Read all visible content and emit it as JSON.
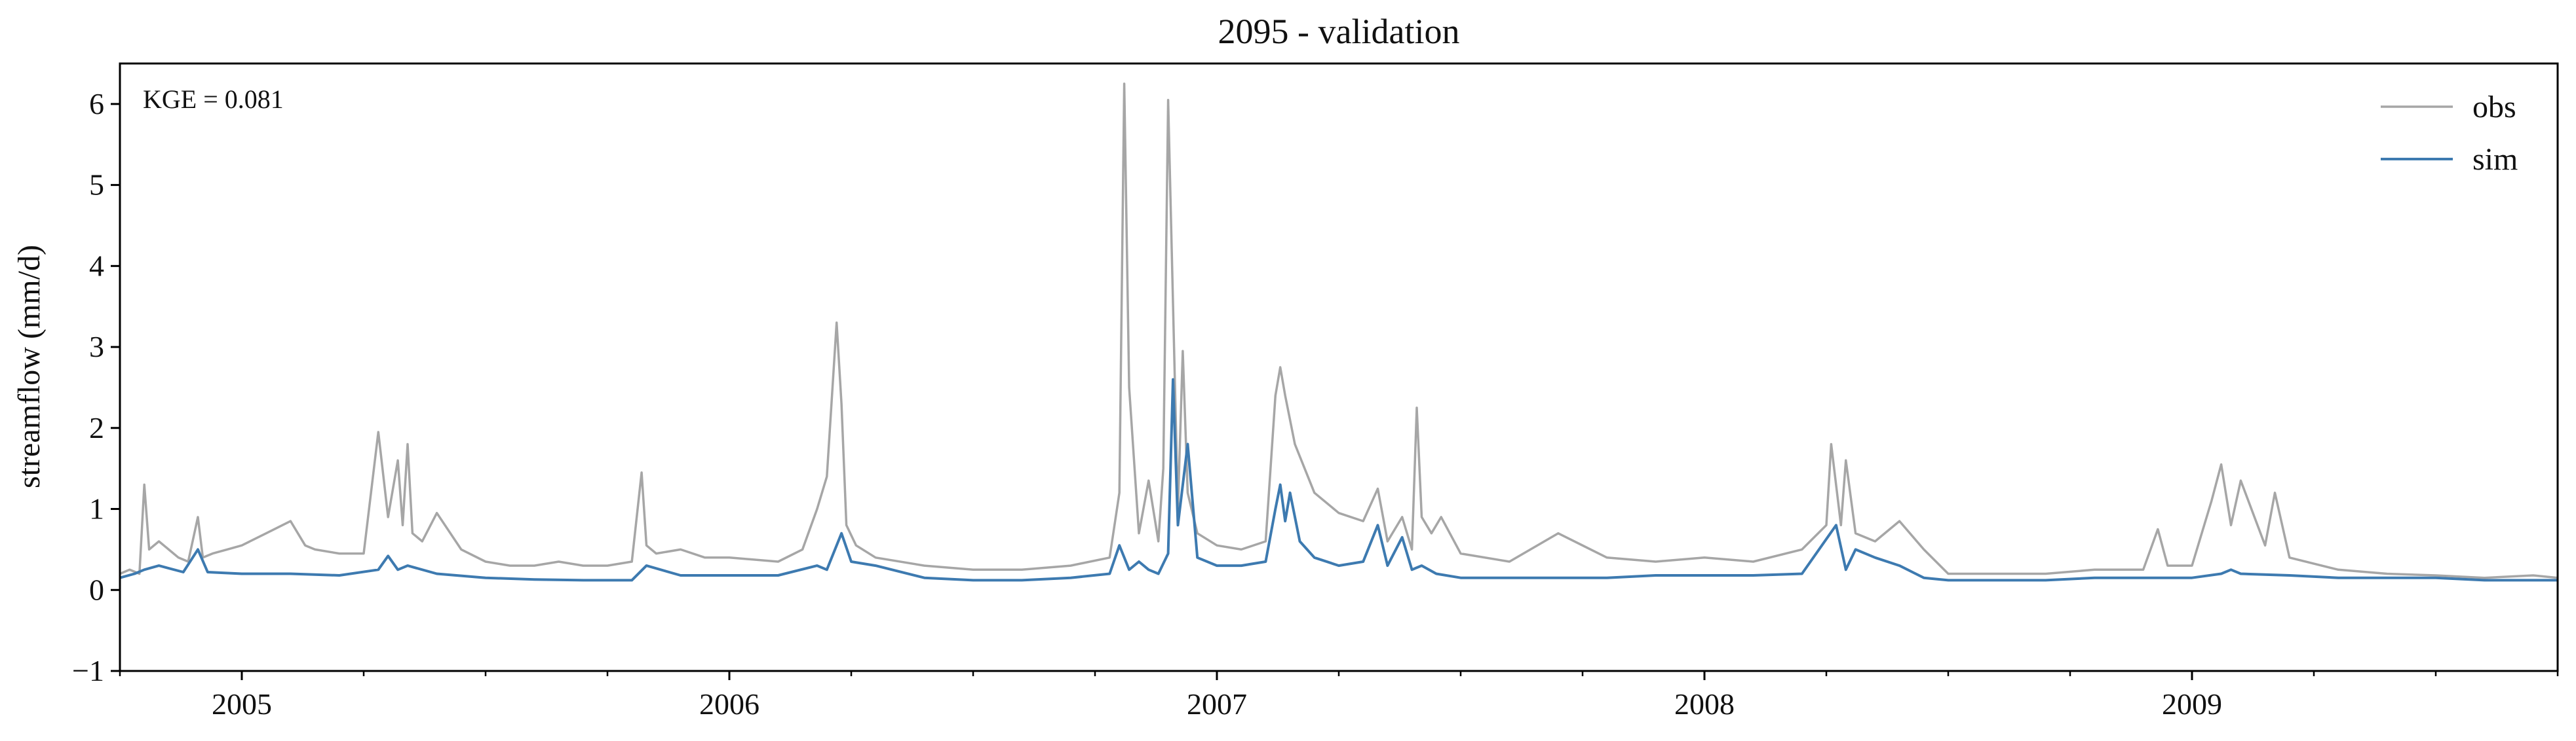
{
  "chart_data": {
    "type": "line",
    "title": "2095 - validation",
    "xlabel": "",
    "ylabel": "streamflow (mm/d)",
    "annotation": "KGE = 0.081",
    "xlim": [
      2004.75,
      2009.75
    ],
    "ylim": [
      -1,
      6.5
    ],
    "yticks": [
      -1,
      0,
      1,
      2,
      3,
      4,
      5,
      6
    ],
    "ytick_labels": [
      "−1",
      "0",
      "1",
      "2",
      "3",
      "4",
      "5",
      "6"
    ],
    "xticks": [
      2005,
      2006,
      2007,
      2008,
      2009
    ],
    "xtick_labels": [
      "2005",
      "2006",
      "2007",
      "2008",
      "2009"
    ],
    "minor_xticks": [
      2004.75,
      2005.25,
      2005.5,
      2005.75,
      2006.25,
      2006.5,
      2006.75,
      2007.25,
      2007.5,
      2007.75,
      2008.25,
      2008.5,
      2008.75,
      2009.25,
      2009.5,
      2009.75
    ],
    "legend_position": "top-right",
    "series": [
      {
        "name": "obs",
        "color": "#a6a6a6",
        "x": [
          2004.75,
          2004.77,
          2004.79,
          2004.8,
          2004.81,
          2004.83,
          2004.85,
          2004.87,
          2004.89,
          2004.91,
          2004.92,
          2004.94,
          2004.97,
          2005.0,
          2005.05,
          2005.1,
          2005.13,
          2005.15,
          2005.2,
          2005.25,
          2005.28,
          2005.3,
          2005.32,
          2005.33,
          2005.34,
          2005.35,
          2005.37,
          2005.4,
          2005.45,
          2005.5,
          2005.55,
          2005.6,
          2005.65,
          2005.7,
          2005.75,
          2005.8,
          2005.82,
          2005.83,
          2005.85,
          2005.9,
          2005.95,
          2006.0,
          2006.1,
          2006.15,
          2006.18,
          2006.2,
          2006.22,
          2006.23,
          2006.24,
          2006.26,
          2006.3,
          2006.4,
          2006.5,
          2006.6,
          2006.7,
          2006.78,
          2006.8,
          2006.81,
          2006.82,
          2006.84,
          2006.86,
          2006.88,
          2006.89,
          2006.9,
          2006.92,
          2006.93,
          2006.94,
          2006.96,
          2007.0,
          2007.05,
          2007.1,
          2007.12,
          2007.13,
          2007.14,
          2007.16,
          2007.18,
          2007.2,
          2007.25,
          2007.3,
          2007.33,
          2007.35,
          2007.38,
          2007.4,
          2007.41,
          2007.42,
          2007.44,
          2007.46,
          2007.5,
          2007.6,
          2007.7,
          2007.8,
          2007.9,
          2008.0,
          2008.1,
          2008.2,
          2008.25,
          2008.26,
          2008.28,
          2008.29,
          2008.31,
          2008.35,
          2008.4,
          2008.45,
          2008.5,
          2008.6,
          2008.7,
          2008.8,
          2008.9,
          2008.93,
          2008.95,
          2009.0,
          2009.04,
          2009.06,
          2009.08,
          2009.1,
          2009.15,
          2009.17,
          2009.2,
          2009.3,
          2009.4,
          2009.5,
          2009.6,
          2009.7,
          2009.75
        ],
        "values": [
          0.2,
          0.25,
          0.2,
          1.3,
          0.5,
          0.6,
          0.5,
          0.4,
          0.35,
          0.9,
          0.4,
          0.45,
          0.5,
          0.55,
          0.7,
          0.85,
          0.55,
          0.5,
          0.45,
          0.45,
          1.95,
          0.9,
          1.6,
          0.8,
          1.8,
          0.7,
          0.6,
          0.95,
          0.5,
          0.35,
          0.3,
          0.3,
          0.35,
          0.3,
          0.3,
          0.35,
          1.45,
          0.55,
          0.45,
          0.5,
          0.4,
          0.4,
          0.35,
          0.5,
          1.0,
          1.4,
          3.3,
          2.3,
          0.8,
          0.55,
          0.4,
          0.3,
          0.25,
          0.25,
          0.3,
          0.4,
          1.2,
          6.25,
          2.5,
          0.7,
          1.35,
          0.6,
          1.5,
          6.05,
          1.0,
          2.95,
          1.2,
          0.7,
          0.55,
          0.5,
          0.6,
          2.4,
          2.75,
          2.4,
          1.8,
          1.5,
          1.2,
          0.95,
          0.85,
          1.25,
          0.6,
          0.9,
          0.5,
          2.25,
          0.9,
          0.7,
          0.9,
          0.45,
          0.35,
          0.7,
          0.4,
          0.35,
          0.4,
          0.35,
          0.5,
          0.8,
          1.8,
          0.8,
          1.6,
          0.7,
          0.6,
          0.85,
          0.5,
          0.2,
          0.2,
          0.2,
          0.25,
          0.25,
          0.75,
          0.3,
          0.3,
          1.1,
          1.55,
          0.8,
          1.35,
          0.55,
          1.2,
          0.4,
          0.25,
          0.2,
          0.18,
          0.15,
          0.18,
          0.15
        ]
      },
      {
        "name": "sim",
        "color": "#3d7ab0",
        "x": [
          2004.75,
          2004.78,
          2004.8,
          2004.83,
          2004.88,
          2004.91,
          2004.93,
          2005.0,
          2005.1,
          2005.2,
          2005.28,
          2005.3,
          2005.32,
          2005.34,
          2005.4,
          2005.5,
          2005.6,
          2005.7,
          2005.8,
          2005.83,
          2005.9,
          2006.0,
          2006.1,
          2006.18,
          2006.2,
          2006.23,
          2006.25,
          2006.3,
          2006.4,
          2006.5,
          2006.6,
          2006.7,
          2006.78,
          2006.8,
          2006.82,
          2006.84,
          2006.86,
          2006.88,
          2006.9,
          2006.91,
          2006.92,
          2006.94,
          2006.96,
          2007.0,
          2007.05,
          2007.1,
          2007.12,
          2007.13,
          2007.14,
          2007.15,
          2007.17,
          2007.2,
          2007.25,
          2007.3,
          2007.33,
          2007.35,
          2007.38,
          2007.4,
          2007.42,
          2007.45,
          2007.5,
          2007.6,
          2007.7,
          2007.8,
          2007.9,
          2008.0,
          2008.1,
          2008.2,
          2008.27,
          2008.29,
          2008.31,
          2008.35,
          2008.4,
          2008.45,
          2008.5,
          2008.6,
          2008.7,
          2008.8,
          2008.9,
          2009.0,
          2009.06,
          2009.08,
          2009.1,
          2009.2,
          2009.3,
          2009.4,
          2009.5,
          2009.6,
          2009.7,
          2009.75
        ],
        "values": [
          0.15,
          0.2,
          0.25,
          0.3,
          0.22,
          0.5,
          0.22,
          0.2,
          0.2,
          0.18,
          0.25,
          0.42,
          0.25,
          0.3,
          0.2,
          0.15,
          0.13,
          0.12,
          0.12,
          0.3,
          0.18,
          0.18,
          0.18,
          0.3,
          0.25,
          0.7,
          0.35,
          0.3,
          0.15,
          0.12,
          0.12,
          0.15,
          0.2,
          0.55,
          0.25,
          0.35,
          0.25,
          0.2,
          0.45,
          2.6,
          0.8,
          1.8,
          0.4,
          0.3,
          0.3,
          0.35,
          1.0,
          1.3,
          0.85,
          1.2,
          0.6,
          0.4,
          0.3,
          0.35,
          0.8,
          0.3,
          0.65,
          0.25,
          0.3,
          0.2,
          0.15,
          0.15,
          0.15,
          0.15,
          0.18,
          0.18,
          0.18,
          0.2,
          0.8,
          0.25,
          0.5,
          0.4,
          0.3,
          0.15,
          0.12,
          0.12,
          0.12,
          0.15,
          0.15,
          0.15,
          0.2,
          0.25,
          0.2,
          0.18,
          0.15,
          0.15,
          0.15,
          0.12,
          0.12,
          0.12
        ]
      }
    ]
  }
}
